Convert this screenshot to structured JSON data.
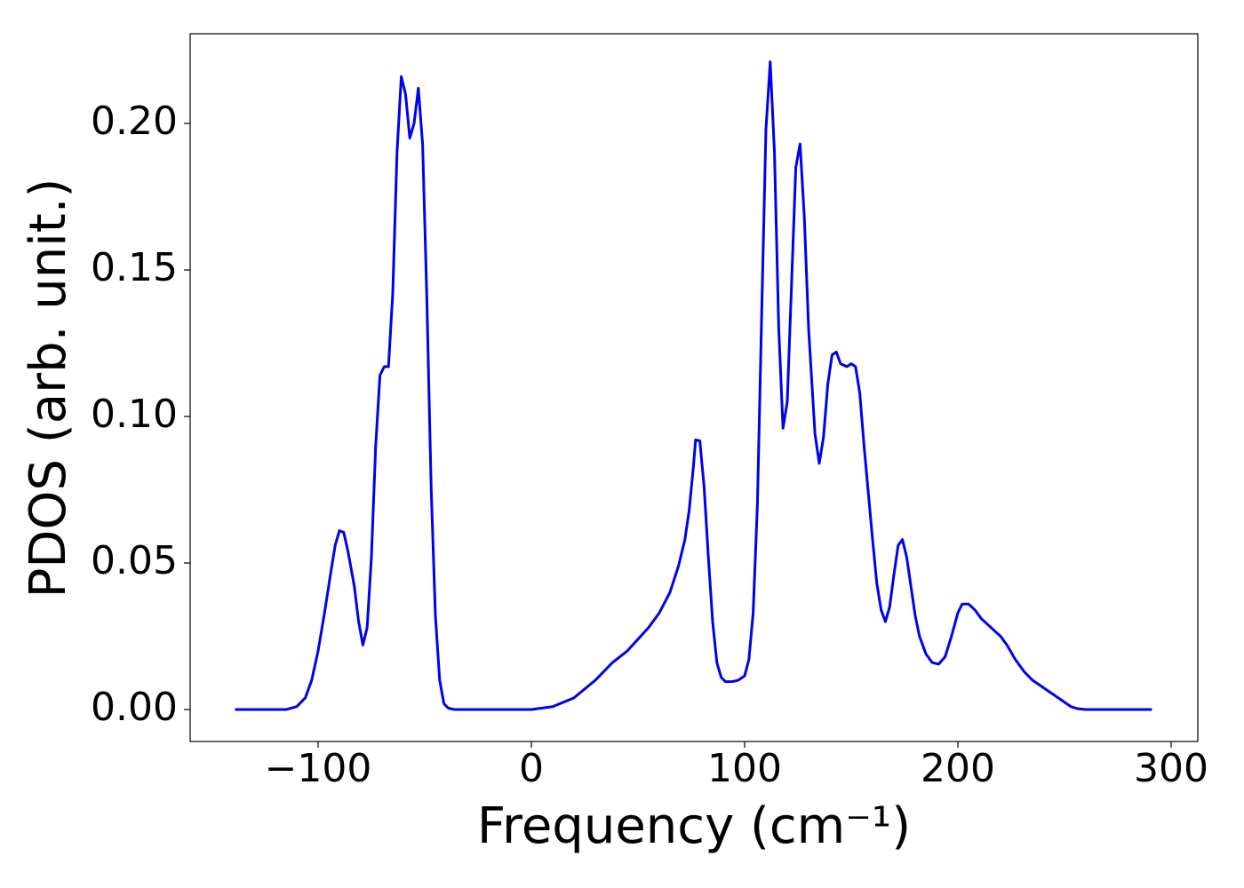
{
  "chart_data": {
    "type": "line",
    "xlabel": "Frequency (cm⁻¹)",
    "ylabel": "PDOS (arb. unit.)",
    "color": "#0000ee",
    "x": [
      -139,
      -115,
      -110,
      -106,
      -103,
      -100,
      -97,
      -94,
      -92,
      -90,
      -88,
      -86,
      -83,
      -81,
      -79,
      -77,
      -75,
      -73,
      -71,
      -69,
      -67,
      -65,
      -63,
      -61,
      -59,
      -57,
      -55,
      -53,
      -51,
      -49,
      -47,
      -45,
      -43,
      -41,
      -39,
      -36,
      0,
      10,
      20,
      30,
      38,
      45,
      50,
      55,
      60,
      65,
      69,
      72,
      74,
      76,
      77,
      79,
      81,
      83,
      85,
      87,
      89,
      91,
      94,
      97,
      100,
      102,
      104,
      106,
      108,
      110,
      112,
      114,
      116,
      118,
      120,
      122,
      124,
      126,
      128,
      130,
      133,
      135,
      137,
      139,
      141,
      143,
      145,
      148,
      150,
      152,
      154,
      156,
      158,
      160,
      162,
      164,
      166,
      168,
      170,
      172,
      174,
      176,
      178,
      180,
      182,
      185,
      188,
      191,
      194,
      197,
      200,
      202,
      205,
      208,
      211,
      214,
      217,
      220,
      223,
      227,
      231,
      235,
      240,
      245,
      250,
      253,
      256,
      260,
      291
    ],
    "values": [
      0,
      0,
      0.001,
      0.004,
      0.01,
      0.02,
      0.033,
      0.047,
      0.056,
      0.061,
      0.0605,
      0.054,
      0.042,
      0.03,
      0.022,
      0.028,
      0.052,
      0.09,
      0.114,
      0.117,
      0.117,
      0.142,
      0.19,
      0.216,
      0.21,
      0.195,
      0.2,
      0.212,
      0.193,
      0.14,
      0.076,
      0.032,
      0.01,
      0.002,
      0.0005,
      0,
      0,
      0.001,
      0.004,
      0.01,
      0.016,
      0.02,
      0.024,
      0.028,
      0.033,
      0.04,
      0.049,
      0.058,
      0.068,
      0.083,
      0.092,
      0.0917,
      0.076,
      0.052,
      0.03,
      0.016,
      0.011,
      0.0095,
      0.0095,
      0.01,
      0.0115,
      0.017,
      0.033,
      0.07,
      0.135,
      0.198,
      0.221,
      0.19,
      0.13,
      0.096,
      0.105,
      0.145,
      0.185,
      0.193,
      0.168,
      0.13,
      0.094,
      0.084,
      0.093,
      0.111,
      0.121,
      0.122,
      0.118,
      0.117,
      0.118,
      0.117,
      0.108,
      0.09,
      0.074,
      0.058,
      0.043,
      0.034,
      0.03,
      0.035,
      0.046,
      0.056,
      0.058,
      0.052,
      0.042,
      0.032,
      0.025,
      0.019,
      0.016,
      0.0155,
      0.018,
      0.025,
      0.033,
      0.036,
      0.036,
      0.034,
      0.031,
      0.029,
      0.027,
      0.025,
      0.022,
      0.017,
      0.013,
      0.01,
      0.0075,
      0.005,
      0.0025,
      0.001,
      0.0003,
      0,
      0
    ],
    "xlim": [
      -160,
      312.5
    ],
    "ylim": [
      -0.0109,
      0.2306
    ],
    "xticks": [
      {
        "value": -100,
        "label": "−100"
      },
      0,
      100,
      200,
      300
    ],
    "yticks": [
      {
        "value": 0,
        "label": "0.00"
      },
      {
        "value": 0.05,
        "label": "0.05"
      },
      {
        "value": 0.1,
        "label": "0.10"
      },
      {
        "value": 0.15,
        "label": "0.15"
      },
      {
        "value": 0.2,
        "label": "0.20"
      }
    ],
    "grid": false
  }
}
